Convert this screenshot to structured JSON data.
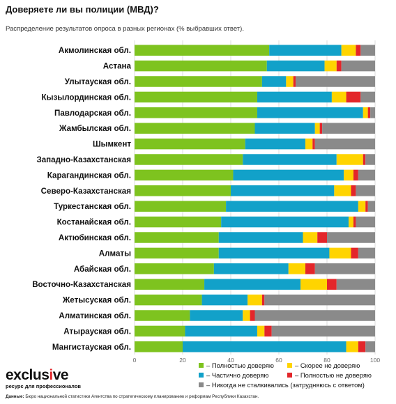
{
  "header": {
    "title": "Доверяете ли вы полиции (МВД)?",
    "subtitle": "Распределение результатов опроса в разных регионах (% выбравших ответ)."
  },
  "colors": {
    "full_trust": "#7ec31f",
    "partial_trust": "#12a1c9",
    "rather_distrust": "#ffd400",
    "full_distrust": "#e3262a",
    "never_faced": "#8a8a8a"
  },
  "chart_data": {
    "type": "bar",
    "orientation": "horizontal",
    "stacked": true,
    "title": "Доверяете ли вы полиции (МВД)?",
    "subtitle": "Распределение результатов опроса в разных регионах (% выбравших ответ).",
    "xlim": [
      0,
      100
    ],
    "x_ticks": [
      "0",
      "20",
      "40",
      "60",
      "80",
      "100"
    ],
    "grid": true,
    "legend_position": "bottom-right",
    "categories": [
      "Акмолинская обл.",
      "Астана",
      "Улытауская обл.",
      "Кызылординская обл.",
      "Павлодарская обл.",
      "Жамбылская обл.",
      "Шымкент",
      "Западно-Казахстанская",
      "Карагандинская обл.",
      "Северо-Казахстанская",
      "Туркестанская обл.",
      "Костанайская обл.",
      "Актюбинская обл.",
      "Алматы",
      "Абайская обл.",
      "Восточно-Казахстанская",
      "Жетысуская обл.",
      "Алматинская обл.",
      "Атырауская обл.",
      "Мангистауская обл."
    ],
    "series": [
      {
        "name": "Полностью доверяю",
        "color": "#7ec31f",
        "values": [
          56,
          55,
          53,
          51,
          51,
          50,
          46,
          45,
          41,
          40,
          38,
          36,
          35,
          35,
          33,
          29,
          28,
          23,
          21,
          20
        ]
      },
      {
        "name": "Частично доверяю",
        "color": "#12a1c9",
        "values": [
          30,
          24,
          10,
          31,
          44,
          25,
          25,
          39,
          46,
          43,
          55,
          53,
          35,
          46,
          31,
          40,
          19,
          22,
          30,
          68
        ]
      },
      {
        "name": "Скорее не доверяю",
        "color": "#ffd400",
        "values": [
          6,
          5,
          3,
          6,
          2,
          2,
          3,
          11,
          4,
          7,
          3,
          2,
          6,
          9,
          7,
          11,
          6,
          3,
          3,
          5
        ]
      },
      {
        "name": "Полностью не доверяю",
        "color": "#e3262a",
        "values": [
          2,
          2,
          1,
          6,
          1,
          1,
          1,
          1,
          2,
          2,
          1,
          1,
          4,
          3,
          4,
          4,
          1,
          2,
          3,
          3
        ]
      },
      {
        "name": "Никогда не сталкивались (затрудняюсь с ответом)",
        "color": "#8a8a8a",
        "values": [
          6,
          14,
          33,
          6,
          2,
          22,
          25,
          4,
          7,
          8,
          3,
          8,
          20,
          7,
          25,
          16,
          46,
          50,
          43,
          4
        ]
      }
    ]
  },
  "legend": {
    "full_trust": "Полностью доверяю",
    "rather_distrust": "Скорее не доверяю",
    "partial_trust": "Частично доверяю",
    "full_distrust": "Полностью не доверяю",
    "never_faced": "Никогда не сталкивались (затрудняюсь с ответом)"
  },
  "logo": {
    "text_main": "exclus",
    "text_accent": "i",
    "text_end": "ve",
    "tagline": "ресурс для профессионалов"
  },
  "source": {
    "label": "Данные:",
    "text": "Бюро национальной статистики Агентства по стратегическому планированию и реформам Республики Казахстан."
  }
}
